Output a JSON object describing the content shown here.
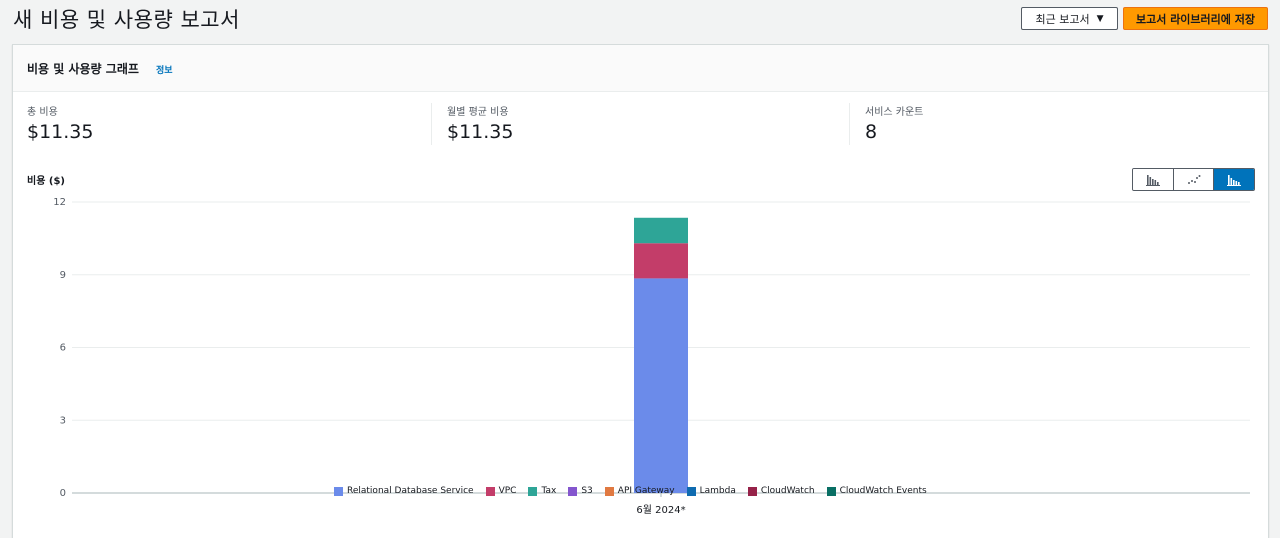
{
  "header": {
    "title": "새 비용 및 사용량 보고서",
    "recent_reports_label": "최근 보고서",
    "save_button_label": "보고서 라이브러리에 저장"
  },
  "panel": {
    "title": "비용 및 사용량 그래프",
    "info_link": "정보"
  },
  "metrics": [
    {
      "label": "총 비용",
      "value": "$11.35"
    },
    {
      "label": "월별 평균 비용",
      "value": "$11.35"
    },
    {
      "label": "서비스 카운트",
      "value": "8"
    }
  ],
  "chart_toggle": {
    "options": [
      "bar-chart-icon",
      "line-chart-icon",
      "stacked-bar-chart-icon"
    ],
    "selected": "stacked-bar-chart-icon"
  },
  "chart_data": {
    "type": "bar",
    "stacked": true,
    "ylabel": "비용 ($)",
    "xlabel": "",
    "ylim": [
      0,
      12
    ],
    "yticks": [
      0,
      3,
      6,
      9,
      12
    ],
    "grid": true,
    "categories": [
      "6월 2024*"
    ],
    "series": [
      {
        "name": "Relational Database Service",
        "color": "#6b8bea",
        "values": [
          8.85
        ]
      },
      {
        "name": "VPC",
        "color": "#c33d69",
        "values": [
          1.45
        ]
      },
      {
        "name": "Tax",
        "color": "#2ea597",
        "values": [
          1.05
        ]
      },
      {
        "name": "S3",
        "color": "#8456ce",
        "values": [
          0
        ]
      },
      {
        "name": "API Gateway",
        "color": "#e07941",
        "values": [
          0
        ]
      },
      {
        "name": "Lambda",
        "color": "#0f6bb0",
        "values": [
          0
        ]
      },
      {
        "name": "CloudWatch",
        "color": "#962249",
        "values": [
          0
        ]
      },
      {
        "name": "CloudWatch Events",
        "color": "#096f64",
        "values": [
          0
        ]
      }
    ],
    "legend_position": "bottom"
  }
}
